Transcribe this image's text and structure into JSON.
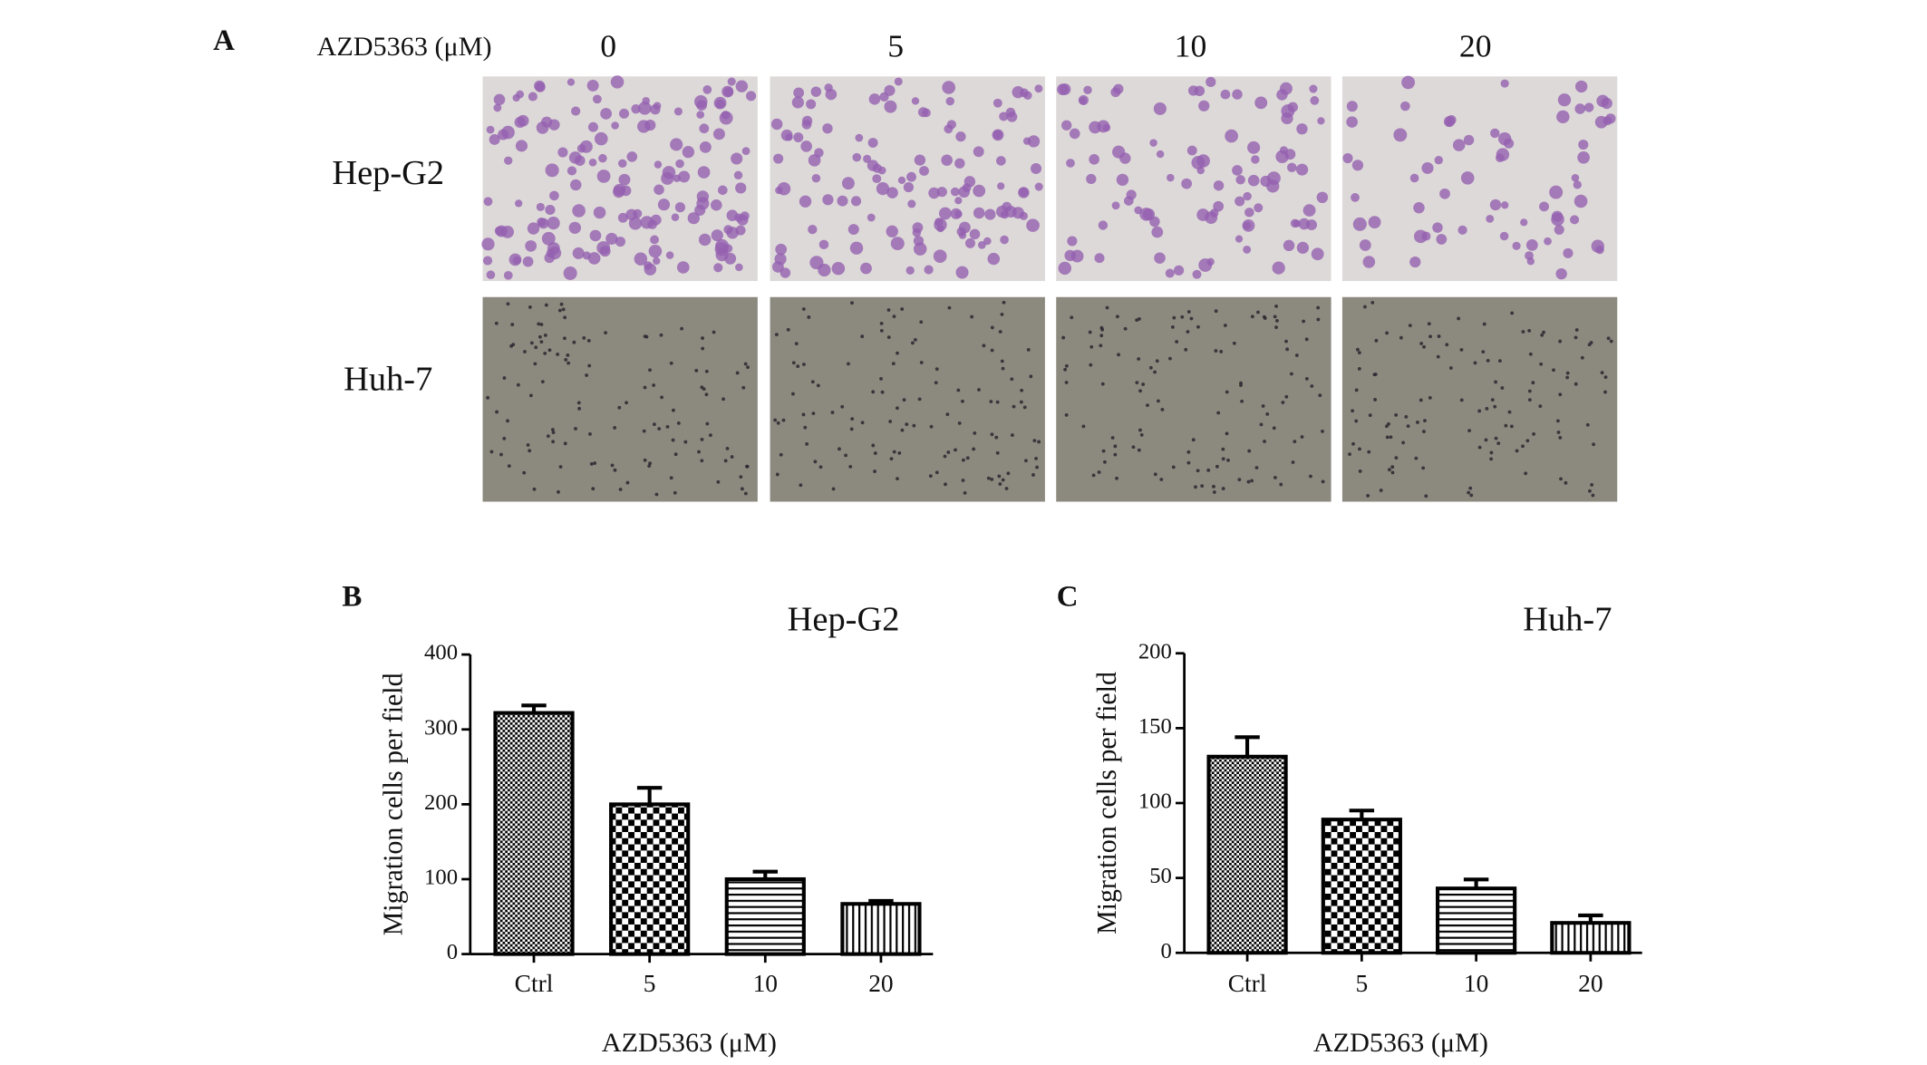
{
  "panel_a": {
    "label": "A",
    "axis_label": "AZD5363 (μM)",
    "columns": [
      "0",
      "5",
      "10",
      "20"
    ],
    "rows": [
      "Hep-G2",
      "Huh-7"
    ]
  },
  "chart_data": [
    {
      "type": "bar",
      "panel": "B",
      "title": "Hep-G2",
      "ylabel": "Migration cells per field",
      "xlabel": "AZD5363 (μM)",
      "categories": [
        "Ctrl",
        "5",
        "10",
        "20"
      ],
      "values": [
        322,
        200,
        100,
        67
      ],
      "errors": [
        10,
        22,
        10,
        4
      ],
      "color": "#000000",
      "ylim": [
        0,
        400
      ],
      "yticks": [
        0,
        100,
        200,
        300,
        400
      ]
    },
    {
      "type": "bar",
      "panel": "C",
      "title": "Huh-7",
      "ylabel": "Migration cells per field",
      "xlabel": "AZD5363 (μM)",
      "categories": [
        "Ctrl",
        "5",
        "10",
        "20"
      ],
      "values": [
        131,
        89,
        43,
        20
      ],
      "errors": [
        13,
        6,
        6,
        5
      ],
      "color": "#000000",
      "ylim": [
        0,
        200
      ],
      "yticks": [
        0,
        50,
        100,
        150,
        200
      ]
    }
  ]
}
